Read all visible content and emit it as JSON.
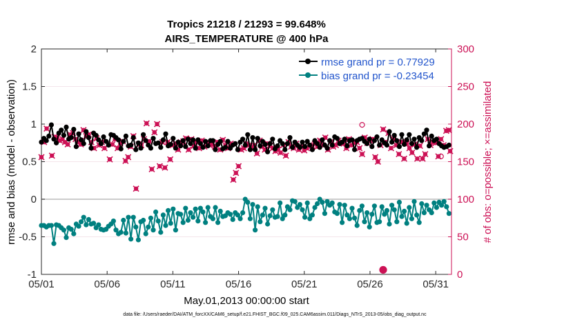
{
  "colors": {
    "rmse": "#000000",
    "bias": "#008080",
    "obs_possible": "#cc1155",
    "obs_assimilated": "#cc1155",
    "right_axis": "#cc1155",
    "zero_line": "#bbbbbb",
    "legend_text": "#2255cc"
  },
  "chart_data": {
    "type": "line",
    "title": [
      "Tropics 21218 / 21293 = 99.648%",
      "AIRS_TEMPERATURE @ 400 hPa"
    ],
    "xlabel": "May.01,2013 00:00:00 start",
    "ylabel": "rmse and bias (model - observation)",
    "y2label": "# of obs: o=possible; ×=assimilated",
    "xlim": [
      1,
      32.2
    ],
    "ylim": [
      -1,
      2
    ],
    "y2lim": [
      0,
      300
    ],
    "x_ticks": [
      1,
      6,
      11,
      16,
      21,
      26,
      31
    ],
    "x_tick_labels": [
      "05/01",
      "05/06",
      "05/11",
      "05/16",
      "05/21",
      "05/26",
      "05/31"
    ],
    "y_ticks": [
      -1,
      -0.5,
      0,
      0.5,
      1,
      1.5,
      2
    ],
    "y_tick_labels": [
      "-1",
      "-0.5",
      "0",
      "0.5",
      "1",
      "1.5",
      "2"
    ],
    "y2_ticks": [
      0,
      50,
      100,
      150,
      200,
      250,
      300
    ],
    "y2_tick_labels": [
      "0",
      "50",
      "100",
      "150",
      "200",
      "250",
      "300"
    ],
    "zero_line": 0,
    "legend": [
      {
        "key": "rmse",
        "label": "rmse grand pr = 0.77929"
      },
      {
        "key": "bias",
        "label": "bias grand pr = -0.23454"
      }
    ],
    "footnote": "data file: /Users/raeder/DAI/ATM_forcXX/CAM6_setup/f.e21.FHIST_BGC.f09_025.CAM6assim.011/Diags_NTrS_2013-05/obs_diag_output.nc",
    "series": [
      {
        "name": "rmse",
        "key": "rmse",
        "axis": "left",
        "values": [
          0.76,
          0.81,
          0.78,
          0.84,
          0.99,
          0.8,
          0.75,
          0.88,
          0.92,
          0.85,
          0.96,
          0.8,
          0.82,
          0.93,
          0.7,
          0.87,
          0.79,
          0.74,
          0.9,
          0.82,
          0.68,
          0.88,
          0.85,
          0.79,
          0.74,
          0.83,
          0.77,
          0.72,
          0.86,
          0.85,
          0.82,
          0.79,
          0.67,
          0.77,
          0.84,
          0.71,
          0.72,
          0.82,
          0.66,
          0.75,
          0.68,
          0.86,
          0.78,
          0.72,
          0.68,
          0.81,
          0.74,
          0.75,
          0.69,
          0.79,
          0.87,
          0.71,
          0.73,
          0.81,
          0.68,
          0.76,
          0.71,
          0.78,
          0.7,
          0.8,
          0.74,
          0.79,
          0.68,
          0.79,
          0.74,
          0.69,
          0.77,
          0.71,
          0.78,
          0.78,
          0.66,
          0.73,
          0.77,
          0.67,
          0.69,
          0.77,
          0.68,
          0.72,
          0.74,
          0.66,
          0.76,
          0.8,
          0.72,
          0.86,
          0.66,
          0.82,
          0.66,
          0.81,
          0.71,
          0.77,
          0.73,
          0.63,
          0.74,
          0.8,
          0.67,
          0.71,
          0.78,
          0.74,
          0.66,
          0.74,
          0.82,
          0.69,
          0.76,
          0.72,
          0.69,
          0.76,
          0.7,
          0.77,
          0.72,
          0.66,
          0.78,
          0.74,
          0.69,
          0.79,
          0.72,
          0.68,
          0.78,
          0.72,
          0.83,
          0.81,
          0.74,
          0.76,
          0.8,
          0.71,
          0.78,
          0.79,
          0.66,
          0.78,
          0.8,
          0.81,
          0.77,
          0.74,
          0.8,
          0.7,
          0.78,
          0.83,
          0.72,
          0.79,
          0.75,
          0.72,
          0.9,
          0.76,
          0.85,
          0.78,
          0.7,
          0.86,
          0.73,
          0.79,
          0.86,
          0.74,
          0.8,
          0.69,
          0.82,
          0.78,
          0.87,
          0.92,
          0.71,
          0.84,
          0.78,
          0.8,
          0.74,
          0.71,
          0.69,
          0.7,
          0.72
        ]
      },
      {
        "name": "bias",
        "key": "bias",
        "axis": "left",
        "values": [
          -0.35,
          -0.35,
          -0.37,
          -0.35,
          -0.35,
          -0.59,
          -0.34,
          -0.35,
          -0.38,
          -0.41,
          -0.51,
          -0.38,
          -0.4,
          -0.46,
          -0.33,
          -0.36,
          -0.3,
          -0.24,
          -0.34,
          -0.27,
          -0.33,
          -0.32,
          -0.38,
          -0.34,
          -0.4,
          -0.41,
          -0.4,
          -0.36,
          -0.33,
          -0.29,
          -0.41,
          -0.46,
          -0.44,
          -0.28,
          -0.45,
          -0.24,
          -0.53,
          -0.24,
          -0.37,
          -0.54,
          -0.3,
          -0.28,
          -0.46,
          -0.37,
          -0.25,
          -0.41,
          -0.17,
          -0.29,
          -0.44,
          -0.21,
          -0.35,
          -0.15,
          -0.32,
          -0.13,
          -0.41,
          -0.19,
          -0.2,
          -0.31,
          -0.12,
          -0.28,
          -0.18,
          -0.24,
          -0.13,
          -0.29,
          -0.12,
          -0.17,
          -0.31,
          -0.11,
          -0.23,
          -0.26,
          -0.11,
          -0.31,
          -0.16,
          -0.23,
          -0.22,
          -0.18,
          -0.2,
          -0.27,
          -0.18,
          -0.21,
          -0.26,
          -0.18,
          0.0,
          -0.04,
          -0.26,
          -0.07,
          -0.41,
          -0.1,
          -0.3,
          -0.21,
          -0.12,
          -0.33,
          -0.22,
          -0.14,
          -0.24,
          -0.23,
          -0.05,
          -0.26,
          -0.21,
          -0.1,
          -0.14,
          -0.02,
          -0.03,
          -0.11,
          -0.07,
          -0.14,
          -0.24,
          -0.05,
          -0.26,
          -0.21,
          -0.11,
          -0.06,
          0.0,
          -0.04,
          -0.19,
          -0.03,
          -0.08,
          -0.05,
          -0.17,
          -0.19,
          -0.07,
          -0.31,
          -0.08,
          -0.21,
          -0.26,
          -0.12,
          -0.25,
          -0.35,
          -0.15,
          -0.09,
          -0.3,
          -0.18,
          -0.37,
          -0.2,
          -0.09,
          -0.31,
          -0.3,
          -0.1,
          -0.2,
          -0.15,
          -0.33,
          -0.08,
          -0.14,
          -0.3,
          -0.04,
          -0.23,
          -0.16,
          -0.32,
          -0.11,
          -0.26,
          -0.03,
          -0.21,
          -0.31,
          -0.06,
          -0.18,
          -0.08,
          -0.14,
          -0.18,
          -0.05,
          -0.11,
          -0.04,
          -0.08,
          -0.03,
          -0.1,
          -0.19
        ]
      },
      {
        "name": "obs possible/assimilated",
        "key": "obs_possible",
        "axis": "right",
        "values": [
          [
            1.0,
            156
          ],
          [
            1.2,
            176
          ],
          [
            1.4,
            194
          ],
          [
            1.8,
            158
          ],
          [
            2.0,
            183
          ],
          [
            2.2,
            182
          ],
          [
            2.4,
            178
          ],
          [
            2.6,
            180
          ],
          [
            2.8,
            176
          ],
          [
            3.0,
            173
          ],
          [
            3.2,
            186
          ],
          [
            3.4,
            188
          ],
          [
            3.6,
            180
          ],
          [
            3.8,
            176
          ],
          [
            4.0,
            173
          ],
          [
            4.2,
            192
          ],
          [
            4.4,
            184
          ],
          [
            4.6,
            186
          ],
          [
            4.8,
            176
          ],
          [
            5.0,
            168
          ],
          [
            5.2,
            181
          ],
          [
            5.4,
            172
          ],
          [
            5.6,
            176
          ],
          [
            5.8,
            168
          ],
          [
            6.2,
            153
          ],
          [
            6.4,
            173
          ],
          [
            6.6,
            180
          ],
          [
            6.8,
            168
          ],
          [
            7.0,
            174
          ],
          [
            7.2,
            177
          ],
          [
            7.4,
            151
          ],
          [
            7.6,
            156
          ],
          [
            7.8,
            170
          ],
          [
            8.0,
            184
          ],
          [
            8.2,
            114
          ],
          [
            8.4,
            173
          ],
          [
            8.6,
            172
          ],
          [
            8.8,
            180
          ],
          [
            9.0,
            201
          ],
          [
            9.2,
            177
          ],
          [
            9.4,
            140
          ],
          [
            9.6,
            189
          ],
          [
            9.8,
            200
          ],
          [
            10.0,
            144
          ],
          [
            10.2,
            176
          ],
          [
            10.4,
            142
          ],
          [
            10.6,
            176
          ],
          [
            10.8,
            153
          ],
          [
            11.0,
            172
          ],
          [
            11.2,
            174
          ],
          [
            11.4,
            166
          ],
          [
            11.6,
            176
          ],
          [
            11.8,
            177
          ],
          [
            12.0,
            181
          ],
          [
            12.2,
            166
          ],
          [
            12.4,
            180
          ],
          [
            12.6,
            171
          ],
          [
            12.8,
            176
          ],
          [
            13.0,
            168
          ],
          [
            13.2,
            178
          ],
          [
            13.4,
            170
          ],
          [
            13.6,
            176
          ],
          [
            13.8,
            172
          ],
          [
            14.0,
            173
          ],
          [
            14.2,
            170
          ],
          [
            14.4,
            176
          ],
          [
            14.6,
            166
          ],
          [
            14.8,
            179
          ],
          [
            15.0,
            172
          ],
          [
            15.2,
            168
          ],
          [
            15.4,
            174
          ],
          [
            15.6,
            126
          ],
          [
            15.8,
            135
          ],
          [
            16.0,
            144
          ],
          [
            16.2,
            166
          ],
          [
            16.4,
            168
          ],
          [
            16.6,
            174
          ],
          [
            16.8,
            172
          ],
          [
            17.0,
            169
          ],
          [
            17.2,
            172
          ],
          [
            17.4,
            161
          ],
          [
            17.6,
            178
          ],
          [
            17.8,
            170
          ],
          [
            18.0,
            166
          ],
          [
            18.2,
            174
          ],
          [
            18.4,
            171
          ],
          [
            18.6,
            168
          ],
          [
            18.8,
            164
          ],
          [
            19.0,
            166
          ],
          [
            19.2,
            162
          ],
          [
            19.4,
            172
          ],
          [
            19.6,
            158
          ],
          [
            19.8,
            176
          ],
          [
            20.0,
            170
          ],
          [
            20.2,
            168
          ],
          [
            20.4,
            174
          ],
          [
            20.6,
            166
          ],
          [
            20.8,
            170
          ],
          [
            21.0,
            165
          ],
          [
            21.2,
            168
          ],
          [
            21.4,
            172
          ],
          [
            21.6,
            171
          ],
          [
            21.8,
            174
          ],
          [
            22.0,
            170
          ],
          [
            22.2,
            178
          ],
          [
            22.4,
            172
          ],
          [
            22.6,
            182
          ],
          [
            22.8,
            166
          ],
          [
            23.0,
            176
          ],
          [
            23.2,
            170
          ],
          [
            23.4,
            172
          ],
          [
            23.6,
            178
          ],
          [
            23.8,
            176
          ],
          [
            24.0,
            174
          ],
          [
            24.2,
            168
          ],
          [
            24.4,
            180
          ],
          [
            24.6,
            172
          ],
          [
            24.8,
            176
          ],
          [
            25.0,
            176
          ],
          [
            25.2,
            168
          ],
          [
            25.4,
            160
          ],
          [
            25.6,
            182
          ],
          [
            25.8,
            175
          ],
          [
            26.0,
            178
          ],
          [
            26.2,
            180
          ],
          [
            26.4,
            156
          ],
          [
            26.6,
            150
          ],
          [
            26.8,
            172
          ],
          [
            27.0,
            193
          ],
          [
            27.2,
            176
          ],
          [
            27.4,
            188
          ],
          [
            27.6,
            168
          ],
          [
            27.8,
            180
          ],
          [
            28.0,
            172
          ],
          [
            28.2,
            160
          ],
          [
            28.4,
            176
          ],
          [
            28.6,
            154
          ],
          [
            28.8,
            174
          ],
          [
            29.0,
            168
          ],
          [
            29.2,
            162
          ],
          [
            29.4,
            173
          ],
          [
            29.6,
            154
          ],
          [
            29.8,
            171
          ],
          [
            30.0,
            154
          ],
          [
            30.2,
            160
          ],
          [
            30.4,
            180
          ],
          [
            30.6,
            172
          ],
          [
            30.8,
            176
          ],
          [
            31.0,
            175
          ],
          [
            31.2,
            157
          ],
          [
            31.4,
            180
          ],
          [
            31.6,
            172
          ],
          [
            31.8,
            191
          ],
          [
            32.0,
            192
          ],
          [
            32.1,
            164
          ],
          [
            27.0,
            6
          ],
          [
            25.4,
            199
          ],
          [
            31.4,
            157
          ]
        ]
      }
    ]
  }
}
